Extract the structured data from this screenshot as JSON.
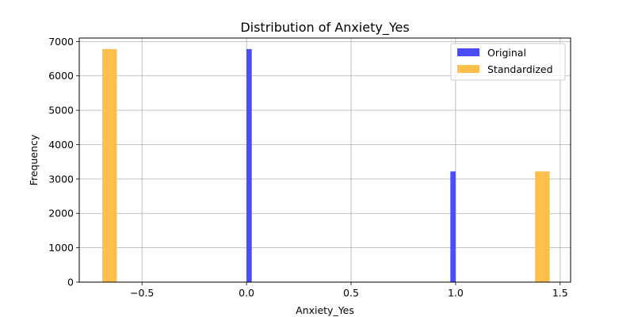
{
  "chart_data": {
    "type": "bar",
    "title": "Distribution of Anxiety_Yes",
    "xlabel": "Anxiety_Yes",
    "ylabel": "Frequency",
    "xlim": [
      -0.8,
      1.55
    ],
    "ylim": [
      0,
      7100
    ],
    "xticks": [
      -0.5,
      0.0,
      0.5,
      1.0,
      1.5
    ],
    "xtick_labels": [
      "−0.5",
      "0.0",
      "0.5",
      "1.0",
      "1.5"
    ],
    "yticks": [
      0,
      1000,
      2000,
      3000,
      4000,
      5000,
      6000,
      7000
    ],
    "ytick_labels": [
      "0",
      "1000",
      "2000",
      "3000",
      "4000",
      "5000",
      "6000",
      "7000"
    ],
    "grid": true,
    "legend_position": "top-right",
    "series": [
      {
        "name": "Original",
        "color": "#4b4bff",
        "bins": [
          {
            "x0": 0.0,
            "x1": 0.025,
            "value": 6780
          },
          {
            "x0": 0.975,
            "x1": 1.0,
            "value": 3220
          }
        ]
      },
      {
        "name": "Standardized",
        "color": "#ffbf4b",
        "bins": [
          {
            "x0": -0.69,
            "x1": -0.62,
            "value": 6780
          },
          {
            "x0": 1.38,
            "x1": 1.45,
            "value": 3220
          }
        ]
      }
    ]
  }
}
